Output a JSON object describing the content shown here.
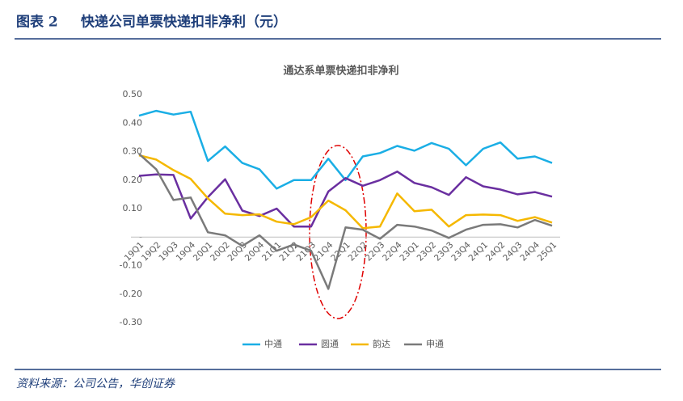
{
  "header": {
    "label": "图表 2",
    "title": "快递公司单票快递扣非净利（元）"
  },
  "chart_data": {
    "type": "line",
    "title": "通达系单票快递扣非净利",
    "categories": [
      "19Q1",
      "19Q2",
      "19Q3",
      "19Q4",
      "20Q1",
      "20Q2",
      "20Q3",
      "20Q4",
      "21Q1",
      "21Q2",
      "21Q3",
      "21Q4",
      "22Q1",
      "22Q2",
      "22Q3",
      "22Q4",
      "23Q1",
      "23Q2",
      "23Q3",
      "23Q4",
      "24Q1",
      "24Q2",
      "24Q3",
      "24Q4",
      "25Q1"
    ],
    "series": [
      {
        "name": "中通",
        "color": "#1aaee5",
        "values": [
          0.426,
          0.443,
          0.43,
          0.44,
          0.267,
          0.318,
          0.26,
          0.238,
          0.17,
          0.2,
          0.2,
          0.275,
          0.2,
          0.283,
          0.295,
          0.32,
          0.303,
          0.33,
          0.31,
          0.252,
          0.31,
          0.332,
          0.275,
          0.283,
          0.26
        ]
      },
      {
        "name": "圆通",
        "color": "#6a2fa0",
        "values": [
          0.215,
          0.22,
          0.218,
          0.065,
          0.14,
          0.203,
          0.093,
          0.074,
          0.1,
          0.037,
          0.037,
          0.16,
          0.207,
          0.18,
          0.2,
          0.23,
          0.19,
          0.175,
          0.148,
          0.21,
          0.178,
          0.167,
          0.15,
          0.158,
          0.142
        ]
      },
      {
        "name": "韵达",
        "color": "#f5b800",
        "values": [
          0.287,
          0.272,
          0.235,
          0.204,
          0.136,
          0.082,
          0.077,
          0.08,
          0.054,
          0.045,
          0.07,
          0.128,
          0.094,
          0.031,
          0.037,
          0.153,
          0.091,
          0.096,
          0.037,
          0.077,
          0.079,
          0.077,
          0.057,
          0.07,
          0.051
        ]
      },
      {
        "name": "申通",
        "color": "#7a7a7a",
        "values": [
          0.292,
          0.238,
          0.13,
          0.139,
          0.017,
          0.006,
          -0.031,
          0.006,
          -0.048,
          -0.026,
          -0.048,
          -0.182,
          0.034,
          0.026,
          -0.006,
          0.043,
          0.037,
          0.023,
          -0.003,
          0.026,
          0.043,
          0.045,
          0.034,
          0.06,
          0.04
        ]
      }
    ],
    "ylim": [
      -0.3,
      0.5
    ],
    "yticks": [
      {
        "value": 0.5,
        "label": "0.50"
      },
      {
        "value": 0.4,
        "label": "0.40"
      },
      {
        "value": 0.3,
        "label": "0.30"
      },
      {
        "value": 0.2,
        "label": "0.20"
      },
      {
        "value": 0.1,
        "label": "0.10"
      },
      {
        "value": 0,
        "label": "-"
      },
      {
        "value": -0.1,
        "label": "-0.10"
      },
      {
        "value": -0.2,
        "label": "-0.20"
      },
      {
        "value": -0.3,
        "label": "-0.30"
      }
    ],
    "grid": false
  },
  "source": "资料来源：公司公告，华创证券"
}
